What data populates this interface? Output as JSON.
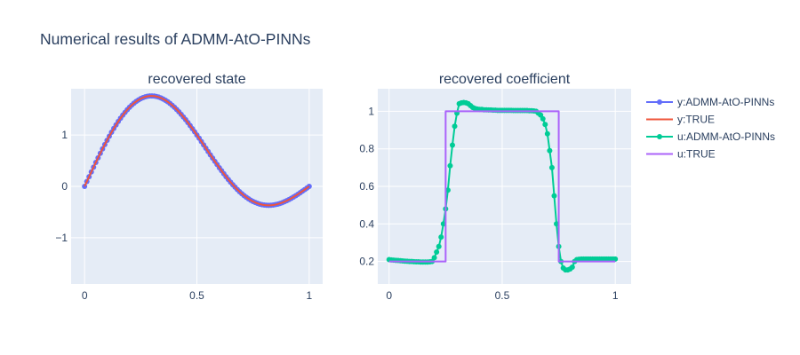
{
  "figure": {
    "title": "Numerical results of ADMM-AtO-PINNs"
  },
  "colors": {
    "y_admm": "#636efa",
    "y_true": "#ef553b",
    "u_admm": "#00cc96",
    "u_true": "#ab63fa",
    "plot_bg": "#e5ecf6",
    "grid": "#ffffff",
    "text": "#2a3f5f"
  },
  "legend": {
    "placement": "right",
    "items": [
      {
        "label": "y:ADMM-AtO-PINNs",
        "color": "#636efa",
        "markers": true
      },
      {
        "label": "y:TRUE",
        "color": "#ef553b",
        "markers": false
      },
      {
        "label": "u:ADMM-AtO-PINNs",
        "color": "#00cc96",
        "markers": true
      },
      {
        "label": "u:TRUE",
        "color": "#ab63fa",
        "markers": false
      }
    ]
  },
  "chart_data": [
    {
      "type": "line",
      "title": "recovered state",
      "xlabel": "",
      "ylabel": "",
      "xlim": [
        -0.06,
        1.06
      ],
      "ylim": [
        -1.9,
        1.9
      ],
      "x_ticks": [
        0,
        0.5,
        1
      ],
      "x_tick_labels": [
        "0",
        "0.5",
        "1"
      ],
      "y_ticks": [
        -1,
        0,
        1
      ],
      "y_tick_labels": [
        "−1",
        "0",
        "1"
      ],
      "grid": true,
      "series": [
        {
          "name": "y:ADMM-AtO-PINNs",
          "mode": "lines+markers",
          "function": "sin(2*pi*x) + sin(pi*x)",
          "x_range": [
            0,
            1
          ],
          "n_points": 101
        },
        {
          "name": "y:TRUE",
          "mode": "lines",
          "function": "sin(2*pi*x) + sin(pi*x)",
          "x_range": [
            0,
            1
          ],
          "n_points": 101
        }
      ]
    },
    {
      "type": "line",
      "title": "recovered coefficient",
      "xlabel": "",
      "ylabel": "",
      "xlim": [
        -0.05,
        1.07
      ],
      "ylim": [
        0.08,
        1.12
      ],
      "x_ticks": [
        0,
        0.5,
        1
      ],
      "x_tick_labels": [
        "0",
        "0.5",
        "1"
      ],
      "y_ticks": [
        0.2,
        0.4,
        0.6,
        0.8,
        1
      ],
      "y_tick_labels": [
        "0.2",
        "0.4",
        "0.6",
        "0.8",
        "1"
      ],
      "grid": true,
      "series": [
        {
          "name": "u:ADMM-AtO-PINNs",
          "mode": "lines+markers",
          "x": [
            0,
            0.01,
            0.02,
            0.03,
            0.04,
            0.05,
            0.06,
            0.07,
            0.08,
            0.09,
            0.1,
            0.11,
            0.12,
            0.13,
            0.14,
            0.15,
            0.16,
            0.17,
            0.18,
            0.19,
            0.2,
            0.21,
            0.22,
            0.23,
            0.24,
            0.25,
            0.26,
            0.27,
            0.28,
            0.29,
            0.3,
            0.31,
            0.32,
            0.33,
            0.34,
            0.35,
            0.36,
            0.37,
            0.38,
            0.39,
            0.4,
            0.41,
            0.42,
            0.43,
            0.44,
            0.45,
            0.46,
            0.47,
            0.48,
            0.49,
            0.5,
            0.51,
            0.52,
            0.53,
            0.54,
            0.55,
            0.56,
            0.57,
            0.58,
            0.59,
            0.6,
            0.61,
            0.62,
            0.63,
            0.64,
            0.65,
            0.66,
            0.67,
            0.68,
            0.69,
            0.7,
            0.71,
            0.72,
            0.73,
            0.74,
            0.75,
            0.76,
            0.77,
            0.78,
            0.79,
            0.8,
            0.81,
            0.82,
            0.83,
            0.84,
            0.85,
            0.86,
            0.87,
            0.88,
            0.89,
            0.9,
            0.91,
            0.92,
            0.93,
            0.94,
            0.95,
            0.96,
            0.97,
            0.98,
            0.99,
            1
          ],
          "values": [
            0.21,
            0.208,
            0.207,
            0.206,
            0.205,
            0.204,
            0.203,
            0.202,
            0.201,
            0.2,
            0.2,
            0.199,
            0.198,
            0.198,
            0.197,
            0.197,
            0.197,
            0.197,
            0.198,
            0.2,
            0.22,
            0.25,
            0.28,
            0.33,
            0.4,
            0.48,
            0.58,
            0.71,
            0.82,
            0.92,
            0.99,
            1.04,
            1.045,
            1.047,
            1.045,
            1.04,
            1.03,
            1.02,
            1.015,
            1.012,
            1.01,
            1.01,
            1.008,
            1.008,
            1.007,
            1.007,
            1.006,
            1.006,
            1.005,
            1.005,
            1.005,
            1.005,
            1.005,
            1.005,
            1.005,
            1.004,
            1.004,
            1.004,
            1.004,
            1.004,
            1.004,
            1.004,
            1.003,
            1.003,
            1.002,
            1.0,
            0.99,
            0.98,
            0.96,
            0.93,
            0.88,
            0.79,
            0.7,
            0.55,
            0.4,
            0.28,
            0.2,
            0.165,
            0.155,
            0.155,
            0.16,
            0.17,
            0.2,
            0.21,
            0.212,
            0.213,
            0.213,
            0.213,
            0.213,
            0.213,
            0.213,
            0.213,
            0.213,
            0.213,
            0.213,
            0.213,
            0.213,
            0.213,
            0.213,
            0.213,
            0.213
          ]
        },
        {
          "name": "u:TRUE",
          "mode": "lines",
          "x": [
            0,
            0.25,
            0.25,
            0.75,
            0.75,
            1
          ],
          "values": [
            0.2,
            0.2,
            1,
            1,
            0.2,
            0.2
          ]
        }
      ]
    }
  ]
}
